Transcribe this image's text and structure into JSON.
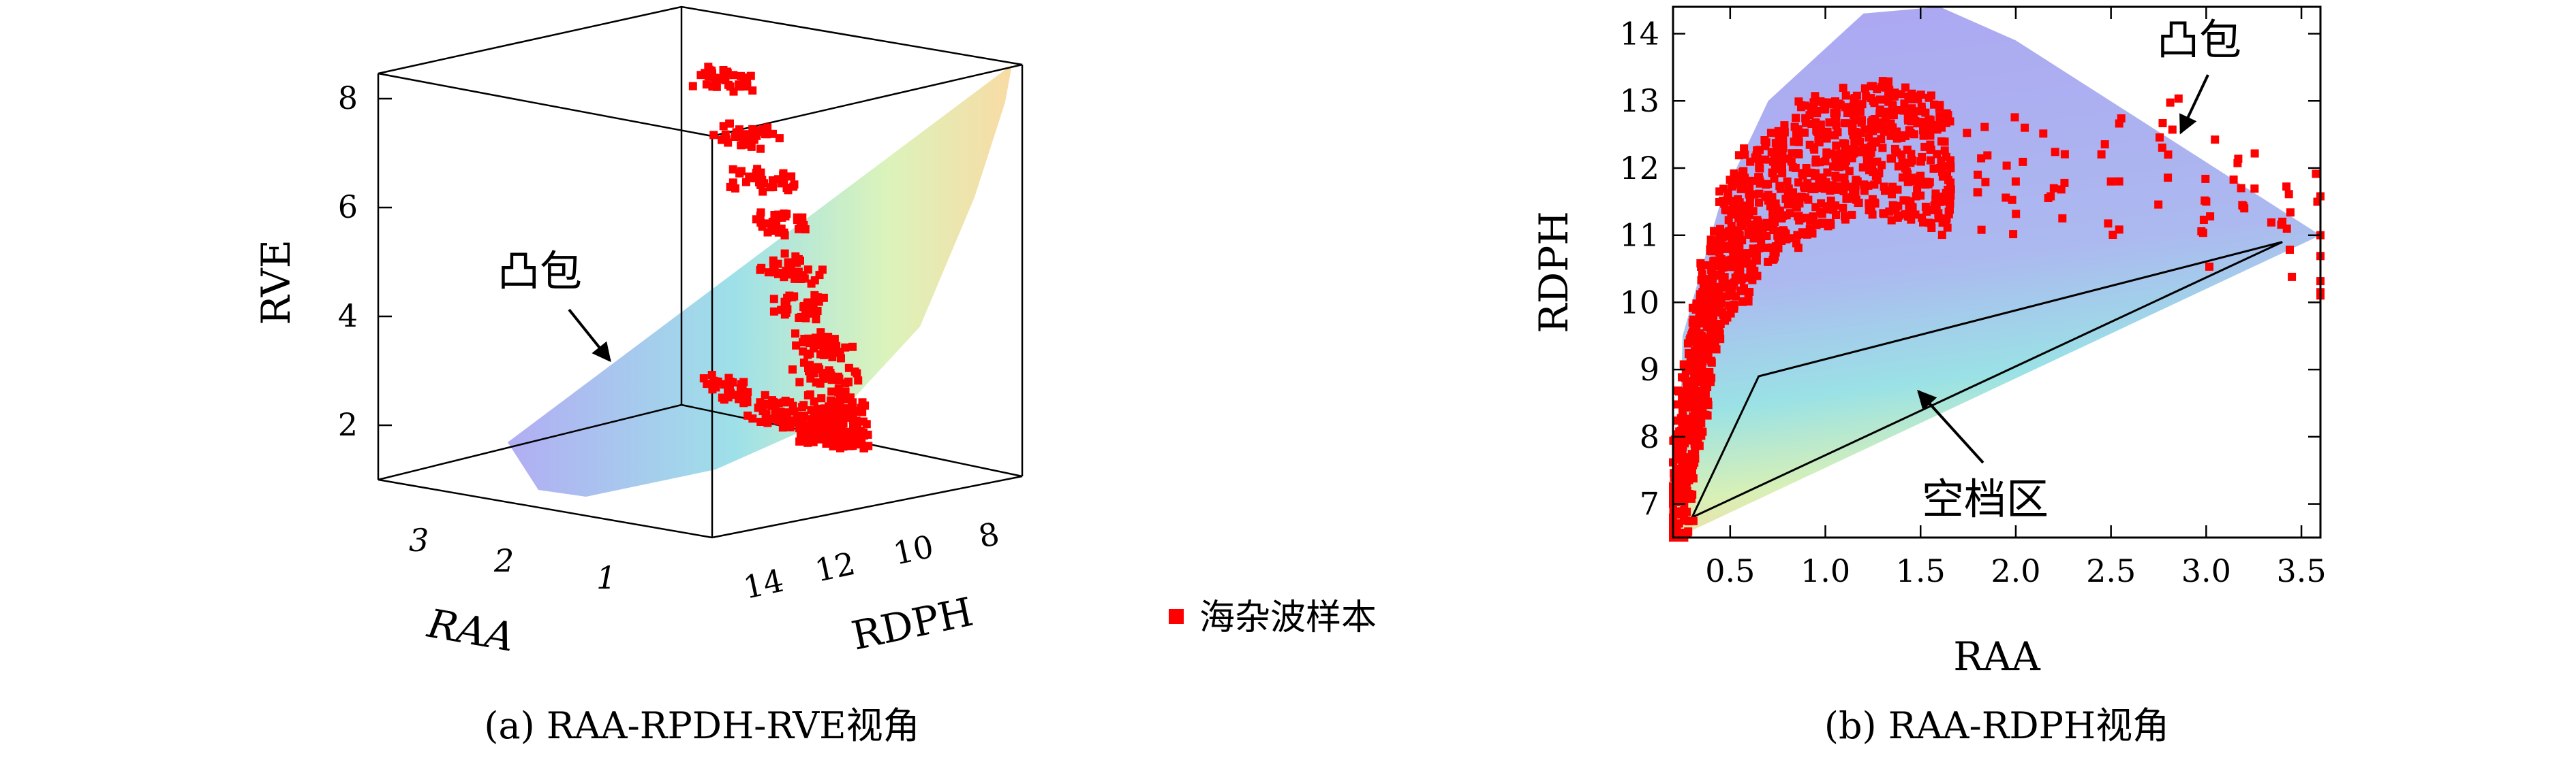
{
  "chart_data": [
    {
      "panel": "a",
      "type": "scatter",
      "projection": "3d",
      "caption": "(a) RAA-RPDH-RVE视角",
      "xlabel": "RAA",
      "ylabel": "RDPH",
      "zlabel": "RVE",
      "x_ticks": [
        "3",
        "2",
        "1"
      ],
      "y_ticks": [
        "14",
        "12",
        "10",
        "8"
      ],
      "z_ticks": [
        "8",
        "6",
        "4",
        "2"
      ],
      "xlim": [
        0.2,
        3.6
      ],
      "ylim": [
        6.5,
        14.5
      ],
      "zlim": [
        1,
        8.5
      ],
      "grid": false,
      "annotation": "凸包",
      "series": [
        {
          "name": "海杂波样本",
          "color": "#ff0000",
          "marker": "square",
          "points": [
            [
              3.0,
              7.0,
              1.7
            ],
            [
              2.4,
              7.3,
              1.55
            ],
            [
              2.0,
              7.6,
              1.5
            ],
            [
              1.6,
              8.0,
              1.5
            ],
            [
              1.3,
              8.5,
              1.6
            ],
            [
              1.0,
              9.0,
              1.8
            ],
            [
              0.9,
              9.5,
              2.1
            ],
            [
              0.7,
              10.0,
              2.5
            ],
            [
              0.6,
              10.5,
              3.0
            ],
            [
              0.5,
              11.0,
              3.6
            ],
            [
              0.45,
              11.5,
              4.3
            ],
            [
              0.4,
              12.0,
              5.0
            ],
            [
              0.35,
              12.5,
              5.8
            ],
            [
              0.3,
              13.0,
              6.6
            ],
            [
              0.25,
              13.5,
              7.4
            ],
            [
              0.22,
              14.2,
              8.4
            ]
          ]
        }
      ],
      "hull": true,
      "hull_colors": [
        "#9fa0ef",
        "#8fe0e6",
        "#f7ecaa",
        "#f7d59b"
      ]
    },
    {
      "panel": "b",
      "type": "scatter",
      "caption": "(b) RAA-RDPH视角",
      "xlabel": "RAA",
      "ylabel": "RDPH",
      "x_ticks": [
        "0.5",
        "1.0",
        "1.5",
        "2.0",
        "2.5",
        "3.0",
        "3.5"
      ],
      "y_ticks": [
        "7",
        "8",
        "9",
        "10",
        "11",
        "12",
        "13",
        "14"
      ],
      "xlim": [
        0.2,
        3.6
      ],
      "ylim": [
        6.5,
        14.4
      ],
      "grid": false,
      "annotations": [
        "凸包",
        "空档区"
      ],
      "hull": [
        [
          0.22,
          6.5
        ],
        [
          0.25,
          9.5
        ],
        [
          0.45,
          11.5
        ],
        [
          0.7,
          13.0
        ],
        [
          1.2,
          14.3
        ],
        [
          1.6,
          14.4
        ],
        [
          2.0,
          13.9
        ],
        [
          3.6,
          11.0
        ]
      ],
      "gap_region": [
        [
          0.3,
          6.8
        ],
        [
          0.65,
          8.9
        ],
        [
          3.4,
          10.9
        ]
      ],
      "series": [
        {
          "name": "海杂波样本",
          "color": "#ff0000",
          "marker": "square",
          "x": [
            0.22,
            0.25,
            0.28,
            0.3,
            0.33,
            0.35,
            0.4,
            0.45,
            0.5,
            0.55,
            0.6,
            0.7,
            0.8,
            0.9,
            1.0,
            1.1,
            1.2,
            1.3,
            1.4,
            1.5,
            1.6,
            1.8,
            2.0,
            2.2,
            2.5,
            2.8,
            3.0,
            3.2,
            3.4,
            3.6
          ],
          "y": [
            6.6,
            7.4,
            8.0,
            8.6,
            9.0,
            9.5,
            10.0,
            10.4,
            10.8,
            11.0,
            11.3,
            11.6,
            11.8,
            12.0,
            12.1,
            12.2,
            12.3,
            12.3,
            12.2,
            12.1,
            12.0,
            11.9,
            11.8,
            11.7,
            11.8,
            12.2,
            11.5,
            11.4,
            11.2,
            11.0
          ]
        }
      ]
    }
  ],
  "legend": {
    "label": "海杂波样本",
    "color": "#ff0000"
  }
}
